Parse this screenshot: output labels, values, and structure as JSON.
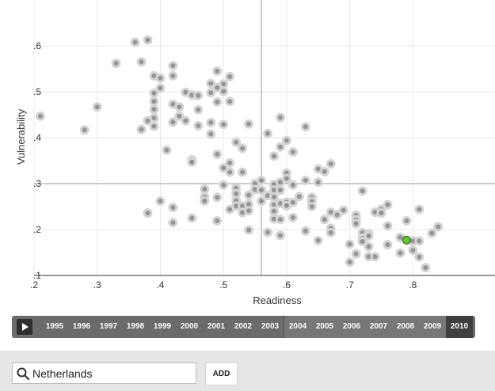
{
  "chart_data": {
    "type": "scatter",
    "title": "",
    "xlabel": "Readiness",
    "ylabel": "Vulnerability",
    "xlim": [
      0.2,
      0.93
    ],
    "ylim": [
      0.1,
      0.7
    ],
    "x_ticks": [
      ".2",
      ".3",
      ".4",
      ".5",
      ".6",
      ".7",
      ".8"
    ],
    "y_ticks": [
      ".1",
      ".2",
      ".3",
      ".4",
      ".5",
      ".6"
    ],
    "reference_lines": {
      "x": 0.56,
      "y": 0.3
    },
    "colors": {
      "point": "#8a8a8a",
      "halo": "#d4d4d4",
      "highlight": "#6abf3a",
      "gridline": "#e8e8e8",
      "reference": "#9a9a9a"
    },
    "highlight": {
      "name": "Netherlands",
      "x": 0.79,
      "y": 0.177
    },
    "points": [
      [
        0.21,
        0.447
      ],
      [
        0.28,
        0.417
      ],
      [
        0.3,
        0.467
      ],
      [
        0.33,
        0.562
      ],
      [
        0.36,
        0.608
      ],
      [
        0.37,
        0.565
      ],
      [
        0.38,
        0.613
      ],
      [
        0.37,
        0.418
      ],
      [
        0.38,
        0.437
      ],
      [
        0.39,
        0.535
      ],
      [
        0.39,
        0.497
      ],
      [
        0.39,
        0.479
      ],
      [
        0.39,
        0.462
      ],
      [
        0.39,
        0.443
      ],
      [
        0.39,
        0.425
      ],
      [
        0.4,
        0.53
      ],
      [
        0.4,
        0.508
      ],
      [
        0.41,
        0.373
      ],
      [
        0.42,
        0.557
      ],
      [
        0.42,
        0.535
      ],
      [
        0.42,
        0.473
      ],
      [
        0.42,
        0.434
      ],
      [
        0.43,
        0.467
      ],
      [
        0.43,
        0.447
      ],
      [
        0.44,
        0.499
      ],
      [
        0.44,
        0.437
      ],
      [
        0.45,
        0.493
      ],
      [
        0.45,
        0.352
      ],
      [
        0.45,
        0.347
      ],
      [
        0.46,
        0.492
      ],
      [
        0.46,
        0.461
      ],
      [
        0.46,
        0.426
      ],
      [
        0.48,
        0.518
      ],
      [
        0.48,
        0.498
      ],
      [
        0.48,
        0.433
      ],
      [
        0.48,
        0.408
      ],
      [
        0.49,
        0.545
      ],
      [
        0.49,
        0.509
      ],
      [
        0.49,
        0.478
      ],
      [
        0.5,
        0.517
      ],
      [
        0.5,
        0.501
      ],
      [
        0.5,
        0.429
      ],
      [
        0.51,
        0.533
      ],
      [
        0.51,
        0.479
      ],
      [
        0.51,
        0.325
      ],
      [
        0.51,
        0.345
      ],
      [
        0.49,
        0.364
      ],
      [
        0.5,
        0.334
      ],
      [
        0.52,
        0.39
      ],
      [
        0.53,
        0.377
      ],
      [
        0.53,
        0.325
      ],
      [
        0.54,
        0.43
      ],
      [
        0.55,
        0.3
      ],
      [
        0.59,
        0.444
      ],
      [
        0.57,
        0.409
      ],
      [
        0.58,
        0.36
      ],
      [
        0.59,
        0.38
      ],
      [
        0.6,
        0.394
      ],
      [
        0.61,
        0.369
      ],
      [
        0.63,
        0.424
      ],
      [
        0.65,
        0.332
      ],
      [
        0.66,
        0.326
      ],
      [
        0.67,
        0.343
      ],
      [
        0.38,
        0.236
      ],
      [
        0.4,
        0.262
      ],
      [
        0.42,
        0.248
      ],
      [
        0.42,
        0.215
      ],
      [
        0.45,
        0.225
      ],
      [
        0.47,
        0.288
      ],
      [
        0.47,
        0.271
      ],
      [
        0.47,
        0.262
      ],
      [
        0.49,
        0.27
      ],
      [
        0.49,
        0.219
      ],
      [
        0.5,
        0.297
      ],
      [
        0.51,
        0.244
      ],
      [
        0.52,
        0.29
      ],
      [
        0.52,
        0.278
      ],
      [
        0.52,
        0.263
      ],
      [
        0.52,
        0.251
      ],
      [
        0.53,
        0.251
      ],
      [
        0.53,
        0.237
      ],
      [
        0.54,
        0.275
      ],
      [
        0.54,
        0.255
      ],
      [
        0.54,
        0.241
      ],
      [
        0.54,
        0.199
      ],
      [
        0.55,
        0.287
      ],
      [
        0.56,
        0.307
      ],
      [
        0.56,
        0.286
      ],
      [
        0.56,
        0.262
      ],
      [
        0.57,
        0.274
      ],
      [
        0.57,
        0.194
      ],
      [
        0.58,
        0.298
      ],
      [
        0.58,
        0.286
      ],
      [
        0.58,
        0.271
      ],
      [
        0.58,
        0.254
      ],
      [
        0.58,
        0.24
      ],
      [
        0.58,
        0.223
      ],
      [
        0.59,
        0.303
      ],
      [
        0.59,
        0.286
      ],
      [
        0.59,
        0.257
      ],
      [
        0.59,
        0.222
      ],
      [
        0.59,
        0.187
      ],
      [
        0.6,
        0.323
      ],
      [
        0.6,
        0.311
      ],
      [
        0.6,
        0.26
      ],
      [
        0.6,
        0.252
      ],
      [
        0.61,
        0.297
      ],
      [
        0.61,
        0.259
      ],
      [
        0.61,
        0.226
      ],
      [
        0.62,
        0.272
      ],
      [
        0.63,
        0.307
      ],
      [
        0.63,
        0.197
      ],
      [
        0.64,
        0.27
      ],
      [
        0.64,
        0.261
      ],
      [
        0.64,
        0.25
      ],
      [
        0.65,
        0.303
      ],
      [
        0.65,
        0.176
      ],
      [
        0.66,
        0.222
      ],
      [
        0.67,
        0.238
      ],
      [
        0.67,
        0.203
      ],
      [
        0.67,
        0.193
      ],
      [
        0.68,
        0.232
      ],
      [
        0.69,
        0.242
      ],
      [
        0.7,
        0.129
      ],
      [
        0.71,
        0.231
      ],
      [
        0.71,
        0.221
      ],
      [
        0.71,
        0.213
      ],
      [
        0.71,
        0.147
      ],
      [
        0.72,
        0.193
      ],
      [
        0.72,
        0.181
      ],
      [
        0.72,
        0.174
      ],
      [
        0.72,
        0.284
      ],
      [
        0.73,
        0.191
      ],
      [
        0.73,
        0.163
      ],
      [
        0.73,
        0.141
      ],
      [
        0.74,
        0.238
      ],
      [
        0.74,
        0.141
      ],
      [
        0.75,
        0.244
      ],
      [
        0.75,
        0.236
      ],
      [
        0.76,
        0.254
      ],
      [
        0.76,
        0.208
      ],
      [
        0.76,
        0.167
      ],
      [
        0.78,
        0.183
      ],
      [
        0.78,
        0.149
      ],
      [
        0.79,
        0.219
      ],
      [
        0.8,
        0.175
      ],
      [
        0.8,
        0.155
      ],
      [
        0.81,
        0.244
      ],
      [
        0.81,
        0.175
      ],
      [
        0.81,
        0.14
      ],
      [
        0.82,
        0.117
      ],
      [
        0.83,
        0.192
      ],
      [
        0.84,
        0.206
      ],
      [
        0.7,
        0.168
      ],
      [
        0.73,
        0.186
      ]
    ]
  },
  "timeline": {
    "play_icon": "play-icon",
    "years": [
      "1995",
      "1996",
      "1997",
      "1998",
      "1999",
      "2000",
      "2001",
      "2002",
      "2003",
      "2004",
      "2005",
      "2006",
      "2007",
      "2008",
      "2009",
      "2010"
    ],
    "selected_year": "2010"
  },
  "search": {
    "icon": "search-icon",
    "value": "Netherlands",
    "add_label": "ADD"
  }
}
